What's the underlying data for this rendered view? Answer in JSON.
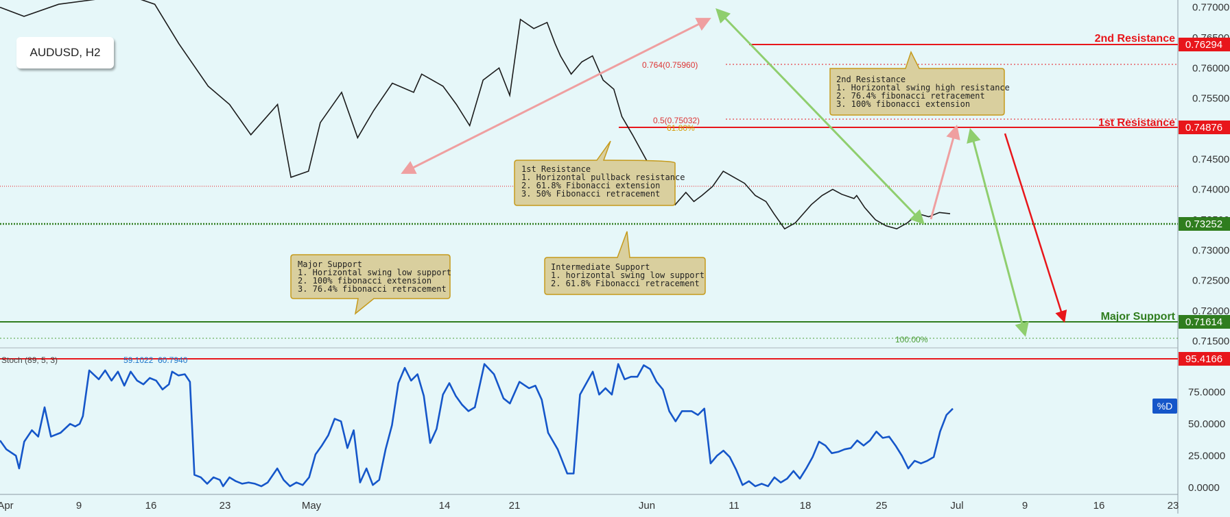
{
  "symbol_label": "AUDUSD, H2",
  "chart_data": [
    {
      "type": "candlestick",
      "title": "AUDUSD, H2",
      "ylim": [
        0.7139,
        0.7712
      ],
      "yticks": [
        "0.77000",
        "0.76500",
        "0.76000",
        "0.75500",
        "0.75000",
        "0.74500",
        "0.74000",
        "0.73500",
        "0.73000",
        "0.72500",
        "0.72000",
        "0.71500"
      ],
      "ytick_values": [
        0.77,
        0.765,
        0.76,
        0.755,
        0.75,
        0.745,
        0.74,
        0.735,
        0.73,
        0.725,
        0.72,
        0.715
      ],
      "xticks": [
        "Apr",
        "9",
        "16",
        "23",
        "May",
        "14",
        "21",
        "Jun",
        "11",
        "18",
        "25",
        "Jul",
        "9",
        "16",
        "23"
      ],
      "price_path": [
        [
          0,
          0.77
        ],
        [
          45,
          0.7685
        ],
        [
          110,
          0.7705
        ],
        [
          240,
          0.772
        ],
        [
          290,
          0.7705
        ],
        [
          335,
          0.764
        ],
        [
          390,
          0.757
        ],
        [
          430,
          0.754
        ],
        [
          470,
          0.749
        ],
        [
          520,
          0.754
        ],
        [
          545,
          0.742
        ],
        [
          578,
          0.743
        ],
        [
          600,
          0.751
        ],
        [
          640,
          0.756
        ],
        [
          670,
          0.7485
        ],
        [
          700,
          0.753
        ],
        [
          735,
          0.7575
        ],
        [
          775,
          0.756
        ],
        [
          790,
          0.759
        ],
        [
          830,
          0.757
        ],
        [
          855,
          0.754
        ],
        [
          880,
          0.7505
        ],
        [
          905,
          0.758
        ],
        [
          935,
          0.76
        ],
        [
          955,
          0.7555
        ],
        [
          975,
          0.768
        ],
        [
          1000,
          0.7665
        ],
        [
          1025,
          0.7675
        ],
        [
          1040,
          0.764
        ],
        [
          1050,
          0.762
        ],
        [
          1070,
          0.759
        ],
        [
          1090,
          0.761
        ],
        [
          1110,
          0.762
        ],
        [
          1130,
          0.758
        ],
        [
          1150,
          0.7565
        ],
        [
          1165,
          0.752
        ],
        [
          1185,
          0.749
        ],
        [
          1210,
          0.745
        ],
        [
          1230,
          0.742
        ],
        [
          1250,
          0.74
        ],
        [
          1265,
          0.7375
        ],
        [
          1285,
          0.7395
        ],
        [
          1300,
          0.738
        ],
        [
          1315,
          0.739
        ],
        [
          1335,
          0.7405
        ],
        [
          1355,
          0.743
        ],
        [
          1375,
          0.742
        ],
        [
          1395,
          0.741
        ],
        [
          1415,
          0.739
        ],
        [
          1435,
          0.738
        ],
        [
          1450,
          0.736
        ],
        [
          1470,
          0.7335
        ],
        [
          1490,
          0.7345
        ],
        [
          1505,
          0.736
        ],
        [
          1520,
          0.7375
        ],
        [
          1540,
          0.739
        ],
        [
          1560,
          0.74
        ],
        [
          1577,
          0.7392
        ],
        [
          1600,
          0.7385
        ],
        [
          1605,
          0.739
        ],
        [
          1620,
          0.737
        ],
        [
          1640,
          0.735
        ],
        [
          1660,
          0.734
        ],
        [
          1680,
          0.7335
        ],
        [
          1700,
          0.7345
        ],
        [
          1720,
          0.736
        ],
        [
          1740,
          0.7355
        ],
        [
          1760,
          0.7362
        ],
        [
          1780,
          0.736
        ]
      ],
      "levels": [
        {
          "label": "2nd Resistance",
          "value": "0.76294",
          "color": "#e8161b"
        },
        {
          "label": "1st Resistance",
          "value": "0.74876",
          "color": "#e8161b"
        },
        {
          "label": "",
          "value": "0.73252",
          "color": "#2f7d1e"
        },
        {
          "label": "Major Support",
          "value": "0.71614",
          "color": "#2f7d1e"
        }
      ],
      "fib_labels": [
        "0.764(0.75960)",
        "0.5(0.75032)",
        "61.80%",
        "100.00%"
      ],
      "annotations": [
        {
          "title": "2nd Resistance",
          "lines": [
            "1. Horizontal swing high resistance",
            "2. 76.4% fibonacci retracement",
            "3. 100% fibonacci extension"
          ]
        },
        {
          "title": "1st Resistance",
          "lines": [
            "1. Horizontal pullback resistance",
            "2. 61.8% Fibonacci extension",
            "3. 50% Fibonacci retracement"
          ]
        },
        {
          "title": "Intermediate Support",
          "lines": [
            "1. horizontal swing low support",
            "2. 61.8% Fibonacci retracement"
          ]
        },
        {
          "title": "Major Support",
          "lines": [
            "1. Horizontal swing low support",
            "2. 100% fibonacci extension",
            "3. 76.4% fibonacci retracement"
          ]
        }
      ]
    },
    {
      "type": "line",
      "title": "Stoch (89, 5, 3)",
      "indicator_values": [
        "59.1022",
        "60.7940"
      ],
      "ylim": [
        0,
        100
      ],
      "yticks": [
        "75.0000",
        "50.0000",
        "25.0000",
        "0.0000"
      ],
      "ytick_values": [
        75,
        50,
        25,
        0
      ],
      "level": {
        "value": "95.4166",
        "color": "#e8161b"
      },
      "series_badge": "%D",
      "series_color": "#1556c9",
      "series_path": [
        [
          0,
          37
        ],
        [
          10,
          30
        ],
        [
          25,
          25
        ],
        [
          30,
          15
        ],
        [
          38,
          36
        ],
        [
          50,
          45
        ],
        [
          60,
          40
        ],
        [
          70,
          63
        ],
        [
          80,
          40
        ],
        [
          95,
          43
        ],
        [
          110,
          50
        ],
        [
          118,
          48
        ],
        [
          125,
          50
        ],
        [
          130,
          56
        ],
        [
          140,
          92
        ],
        [
          155,
          85
        ],
        [
          165,
          92
        ],
        [
          175,
          84
        ],
        [
          185,
          91
        ],
        [
          195,
          80
        ],
        [
          205,
          91
        ],
        [
          215,
          84
        ],
        [
          225,
          81
        ],
        [
          235,
          86
        ],
        [
          245,
          84
        ],
        [
          255,
          77
        ],
        [
          265,
          81
        ],
        [
          270,
          91
        ],
        [
          280,
          88
        ],
        [
          290,
          89
        ],
        [
          298,
          83
        ],
        [
          305,
          10
        ],
        [
          315,
          8
        ],
        [
          325,
          3
        ],
        [
          335,
          8
        ],
        [
          345,
          6
        ],
        [
          350,
          1
        ],
        [
          360,
          8
        ],
        [
          370,
          5
        ],
        [
          380,
          3
        ],
        [
          390,
          4
        ],
        [
          400,
          3
        ],
        [
          410,
          1
        ],
        [
          420,
          4
        ],
        [
          435,
          15
        ],
        [
          445,
          6
        ],
        [
          455,
          1
        ],
        [
          465,
          4
        ],
        [
          475,
          2
        ],
        [
          485,
          8
        ],
        [
          495,
          26
        ],
        [
          505,
          33
        ],
        [
          515,
          41
        ],
        [
          525,
          54
        ],
        [
          535,
          52
        ],
        [
          545,
          31
        ],
        [
          555,
          45
        ],
        [
          565,
          4
        ],
        [
          575,
          15
        ],
        [
          585,
          2
        ],
        [
          595,
          6
        ],
        [
          605,
          30
        ],
        [
          615,
          49
        ],
        [
          625,
          82
        ],
        [
          635,
          94
        ],
        [
          645,
          84
        ],
        [
          655,
          89
        ],
        [
          665,
          72
        ],
        [
          675,
          35
        ],
        [
          685,
          46
        ],
        [
          695,
          73
        ],
        [
          705,
          82
        ],
        [
          715,
          72
        ],
        [
          725,
          65
        ],
        [
          735,
          60
        ],
        [
          745,
          63
        ],
        [
          760,
          97
        ],
        [
          775,
          89
        ],
        [
          790,
          70
        ],
        [
          800,
          66
        ],
        [
          815,
          83
        ],
        [
          830,
          78
        ],
        [
          840,
          80
        ],
        [
          850,
          69
        ],
        [
          860,
          43
        ],
        [
          875,
          30
        ],
        [
          890,
          11
        ],
        [
          900,
          11
        ],
        [
          910,
          73
        ],
        [
          920,
          82
        ],
        [
          930,
          91
        ],
        [
          940,
          73
        ],
        [
          950,
          78
        ],
        [
          960,
          73
        ],
        [
          970,
          97
        ],
        [
          980,
          85
        ],
        [
          990,
          87
        ],
        [
          1000,
          87
        ],
        [
          1010,
          96
        ],
        [
          1020,
          93
        ],
        [
          1030,
          83
        ],
        [
          1040,
          77
        ],
        [
          1050,
          60
        ],
        [
          1060,
          52
        ],
        [
          1070,
          60
        ],
        [
          1085,
          60
        ],
        [
          1095,
          57
        ],
        [
          1105,
          62
        ],
        [
          1115,
          19
        ],
        [
          1125,
          25
        ],
        [
          1135,
          29
        ],
        [
          1145,
          24
        ],
        [
          1155,
          14
        ],
        [
          1165,
          2
        ],
        [
          1175,
          5
        ],
        [
          1185,
          1
        ],
        [
          1195,
          3
        ],
        [
          1205,
          1
        ],
        [
          1215,
          8
        ],
        [
          1225,
          4
        ],
        [
          1235,
          7
        ],
        [
          1245,
          13
        ],
        [
          1255,
          7
        ],
        [
          1265,
          15
        ],
        [
          1275,
          24
        ],
        [
          1285,
          36
        ],
        [
          1295,
          33
        ],
        [
          1305,
          27
        ],
        [
          1315,
          28
        ],
        [
          1325,
          30
        ],
        [
          1335,
          31
        ],
        [
          1345,
          37
        ],
        [
          1355,
          33
        ],
        [
          1365,
          37
        ],
        [
          1375,
          44
        ],
        [
          1385,
          39
        ],
        [
          1395,
          40
        ],
        [
          1405,
          33
        ],
        [
          1415,
          25
        ],
        [
          1425,
          15
        ],
        [
          1435,
          21
        ],
        [
          1445,
          19
        ],
        [
          1455,
          21
        ],
        [
          1465,
          24
        ],
        [
          1475,
          44
        ],
        [
          1485,
          57
        ],
        [
          1495,
          62
        ]
      ]
    }
  ]
}
